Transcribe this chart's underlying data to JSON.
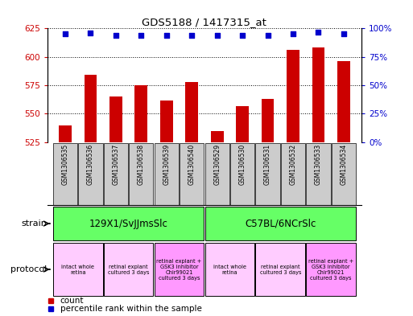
{
  "title": "GDS5188 / 1417315_at",
  "samples": [
    "GSM1306535",
    "GSM1306536",
    "GSM1306537",
    "GSM1306538",
    "GSM1306539",
    "GSM1306540",
    "GSM1306529",
    "GSM1306530",
    "GSM1306531",
    "GSM1306532",
    "GSM1306533",
    "GSM1306534"
  ],
  "counts": [
    540,
    584,
    565,
    575,
    562,
    578,
    535,
    557,
    563,
    606,
    608,
    596
  ],
  "percentiles": [
    95,
    96,
    94,
    94,
    94,
    94,
    94,
    94,
    94,
    95,
    97,
    95
  ],
  "ylim_left": [
    525,
    625
  ],
  "ylim_right": [
    0,
    100
  ],
  "yticks_left": [
    525,
    550,
    575,
    600,
    625
  ],
  "yticks_right": [
    0,
    25,
    50,
    75,
    100
  ],
  "bar_color": "#cc0000",
  "dot_color": "#0000cc",
  "strain_labels": [
    "129X1/SvJJmsSlc",
    "C57BL/6NCrSlc"
  ],
  "strain_color": "#66ff66",
  "protocol_groups": [
    [
      0,
      1,
      "intact whole\nretina",
      "#ffccff"
    ],
    [
      2,
      3,
      "retinal explant\ncultured 3 days",
      "#ffccff"
    ],
    [
      4,
      5,
      "retinal explant +\nGSK3 inhibitor\nChir99021\ncultured 3 days",
      "#ff99ff"
    ],
    [
      6,
      7,
      "intact whole\nretina",
      "#ffccff"
    ],
    [
      8,
      9,
      "retinal explant\ncultured 3 days",
      "#ffccff"
    ],
    [
      10,
      11,
      "retinal explant +\nGSK3 inhibitor\nChir99021\ncultured 3 days",
      "#ff99ff"
    ]
  ],
  "tick_bg_color": "#cccccc",
  "bg_color": "#ffffff",
  "label_color_left": "#cc0000",
  "label_color_right": "#0000cc"
}
